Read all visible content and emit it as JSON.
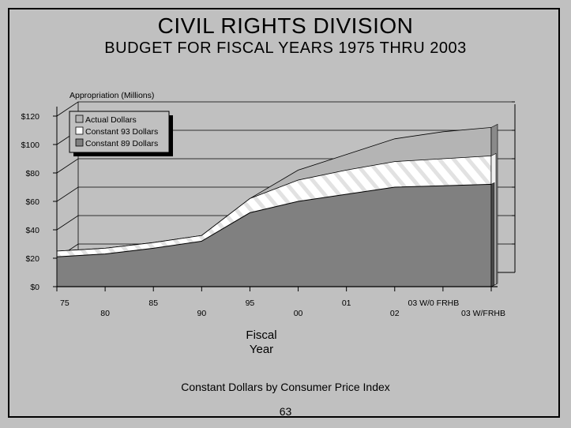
{
  "title": "CIVIL RIGHTS DIVISION",
  "subtitle": "BUDGET FOR FISCAL YEARS 1975 THRU 2003",
  "footnote": "Constant Dollars by Consumer Price Index",
  "page_number": "63",
  "colors": {
    "background": "#c0c0c0",
    "actual": "#b4b4b4",
    "constant93": "#ffffff",
    "constant89": "#808080",
    "walls": "#c0c0c0",
    "grid": "#000000"
  },
  "chart_data": {
    "type": "area",
    "title": "CIVIL RIGHTS DIVISION",
    "subtitle": "BUDGET FOR FISCAL YEARS 1975 THRU 2003",
    "xlabel": "Fiscal Year",
    "ylabel": "Appropriation (Millions)",
    "ylim": [
      0,
      120
    ],
    "y_ticks": [
      "$0",
      "$20",
      "$40",
      "$60",
      "$80",
      "$100",
      "$120"
    ],
    "categories": [
      "75",
      "80",
      "85",
      "90",
      "95",
      "00",
      "01",
      "02",
      "03 W/0 FRHB",
      "03 W/FRHB"
    ],
    "legend": [
      "Actual Dollars",
      "Constant 93 Dollars",
      "Constant 89 Dollars"
    ],
    "legend_position": "top-left",
    "grid": true,
    "three_d": true,
    "series": [
      {
        "name": "Actual Dollars",
        "values": [
          7,
          11,
          16,
          22,
          50,
          82,
          93,
          104,
          109,
          112
        ]
      },
      {
        "name": "Constant 93 Dollars",
        "values": [
          16,
          20,
          24,
          28,
          47,
          60,
          67,
          73,
          75,
          77
        ]
      },
      {
        "name": "Constant 89 Dollars",
        "values": [
          21,
          23,
          27,
          32,
          52,
          60,
          65,
          70,
          71,
          72
        ]
      }
    ]
  }
}
